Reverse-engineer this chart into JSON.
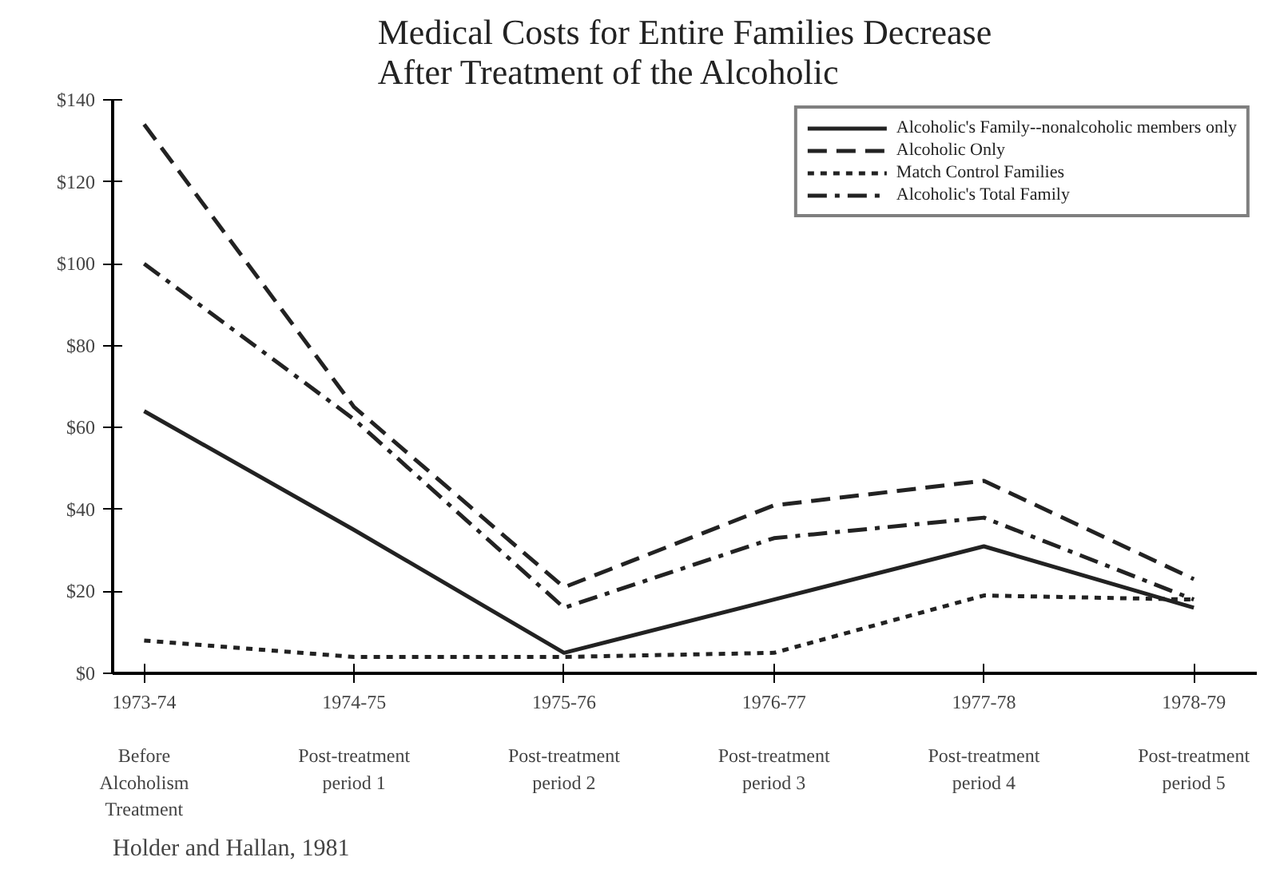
{
  "chart_data": {
    "type": "line",
    "title": "Medical Costs for Entire Families Decrease\nAfter Treatment of the Alcoholic",
    "categories": [
      "1973-74\n\nBefore\nAlcoholism\nTreatment",
      "1974-75\n\nPost-treatment\nperiod 1",
      "1975-76\n\nPost-treatment\nperiod 2",
      "1976-77\n\nPost-treatment\nperiod 3",
      "1977-78\n\nPost-treatment\nperiod 4",
      "1978-79\n\nPost-treatment\nperiod 5"
    ],
    "series": [
      {
        "name": "Alcoholic's Family--nonalcoholic members only",
        "color": "#222222",
        "line_style": "solid",
        "values": [
          64,
          35,
          5,
          18,
          31,
          16
        ]
      },
      {
        "name": "Alcoholic Only",
        "color": "#222222",
        "line_style": "dashed",
        "values": [
          134,
          65,
          21,
          41,
          47,
          23
        ]
      },
      {
        "name": "Match Control Families",
        "color": "#222222",
        "line_style": "dotted",
        "values": [
          8,
          4,
          4,
          5,
          19,
          18
        ]
      },
      {
        "name": "Alcoholic's Total Family",
        "color": "#222222",
        "line_style": "dashdot",
        "values": [
          100,
          62,
          16,
          33,
          38,
          18
        ]
      }
    ],
    "ylim": [
      0,
      140
    ],
    "yticks": [
      {
        "value": 0,
        "label": "$0"
      },
      {
        "value": 20,
        "label": "$20"
      },
      {
        "value": 40,
        "label": "$40"
      },
      {
        "value": 60,
        "label": "$60"
      },
      {
        "value": 80,
        "label": "$80"
      },
      {
        "value": 100,
        "label": "$100"
      },
      {
        "value": 120,
        "label": "$120"
      },
      {
        "value": 140,
        "label": "$140"
      }
    ],
    "grid": false,
    "legend": "top right",
    "marker": "none",
    "annotations": [
      "Holder and Hallan, 1981"
    ]
  }
}
